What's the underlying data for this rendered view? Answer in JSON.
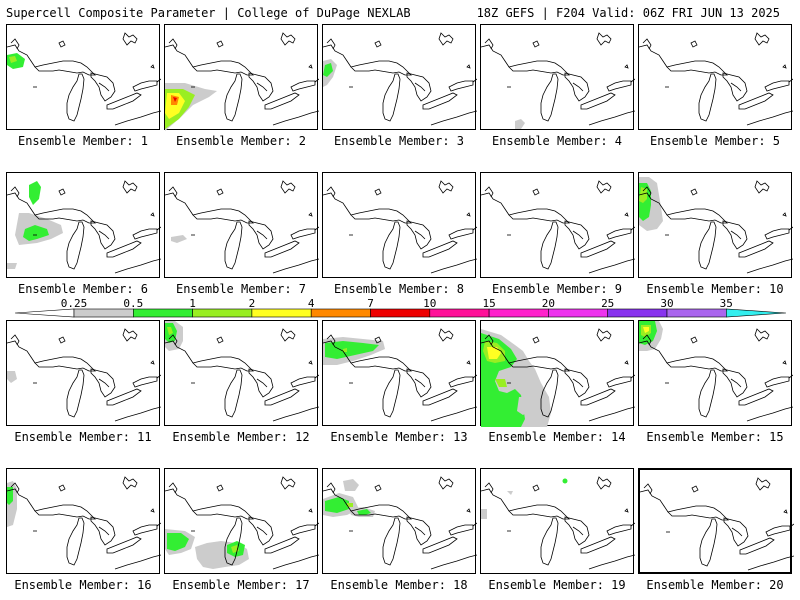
{
  "header": {
    "title": "Supercell Composite Parameter | College of DuPage NEXLAB",
    "run_info": "18Z GEFS | F204 Valid: 06Z FRI JUN 13 2025"
  },
  "colorbar": {
    "labels": [
      "0.25",
      "0.5",
      "1",
      "2",
      "4",
      "7",
      "10",
      "15",
      "20",
      "25",
      "30",
      "35"
    ],
    "colors": [
      "#ffffff",
      "#cccccc",
      "#33ee33",
      "#99ee22",
      "#ffff22",
      "#ff8800",
      "#ee0000",
      "#ff1199",
      "#ff22cc",
      "#ee33ee",
      "#8833ee",
      "#aa66ee",
      "#33eeee"
    ]
  },
  "panels": [
    {
      "label": "Ensemble Member: 1"
    },
    {
      "label": "Ensemble Member: 2"
    },
    {
      "label": "Ensemble Member: 3"
    },
    {
      "label": "Ensemble Member: 4"
    },
    {
      "label": "Ensemble Member: 5"
    },
    {
      "label": "Ensemble Member: 6"
    },
    {
      "label": "Ensemble Member: 7"
    },
    {
      "label": "Ensemble Member: 8"
    },
    {
      "label": "Ensemble Member: 9"
    },
    {
      "label": "Ensemble Member: 10"
    },
    {
      "label": "Ensemble Member: 11"
    },
    {
      "label": "Ensemble Member: 12"
    },
    {
      "label": "Ensemble Member: 13"
    },
    {
      "label": "Ensemble Member: 14"
    },
    {
      "label": "Ensemble Member: 15"
    },
    {
      "label": "Ensemble Member: 16"
    },
    {
      "label": "Ensemble Member: 17"
    },
    {
      "label": "Ensemble Member: 18"
    },
    {
      "label": "Ensemble Member: 19"
    },
    {
      "label": "Ensemble Member: 20"
    }
  ]
}
